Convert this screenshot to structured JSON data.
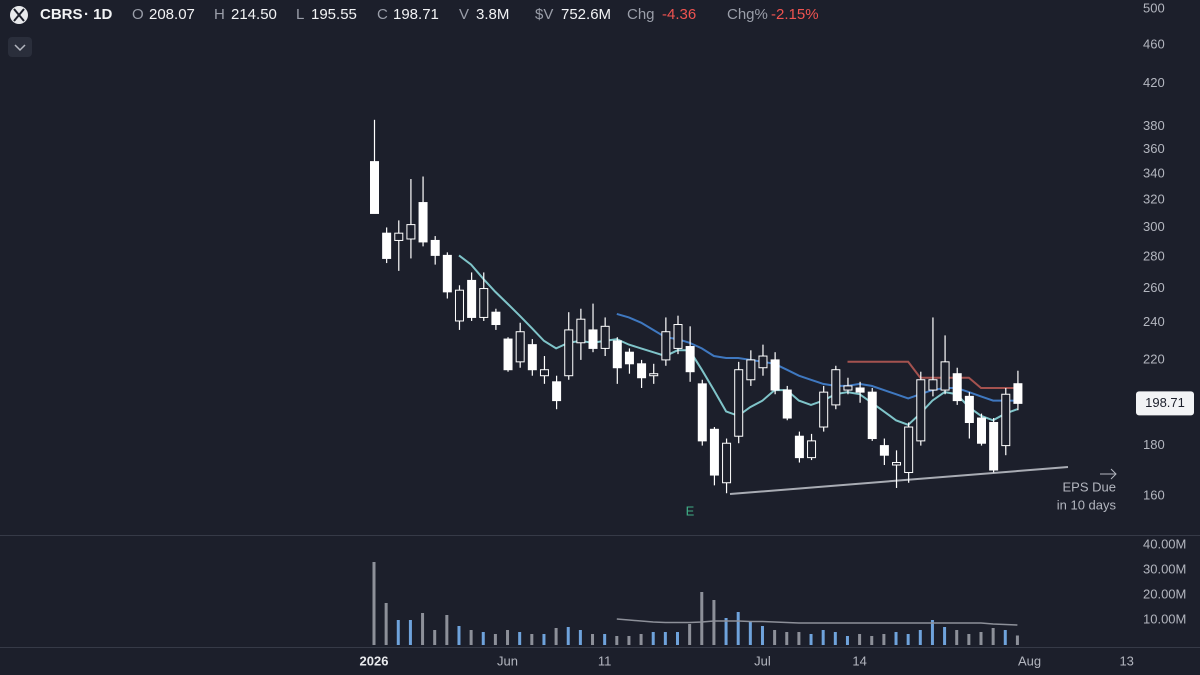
{
  "header": {
    "symbol": "CBRS",
    "interval": "· 1D",
    "o_label": "O",
    "o": "208.07",
    "h_label": "H",
    "h": "214.50",
    "l_label": "L",
    "l": "195.55",
    "c_label": "C",
    "c": "198.71",
    "v_label": "V",
    "v": "3.8M",
    "dv_label": "$V",
    "dv": "752.6M",
    "chg_label": "Chg",
    "chg": "-4.36",
    "chgp_label": "Chg%",
    "chgp": "-2.15%"
  },
  "annotations": {
    "earnings": "E",
    "eps_line1": "EPS Due",
    "eps_line2": "in 10 days"
  },
  "chart_data": {
    "type": "candlestick",
    "log_scale": true,
    "categories": [
      "2026",
      null,
      null,
      null,
      null,
      null,
      null,
      null,
      null,
      null,
      null,
      "Jun",
      null,
      null,
      null,
      null,
      null,
      null,
      null,
      "11",
      null,
      null,
      null,
      null,
      null,
      null,
      null,
      null,
      null,
      null,
      null,
      null,
      "Jul",
      null,
      null,
      null,
      null,
      null,
      null,
      null,
      "14",
      null,
      null,
      null,
      null,
      null,
      null,
      null,
      null,
      null,
      null,
      null,
      null,
      null,
      "Aug",
      null,
      null,
      null,
      null,
      null,
      null,
      null,
      "13"
    ],
    "open": [
      350,
      296,
      291,
      292,
      318,
      291,
      281,
      241,
      265,
      243,
      246,
      231,
      219,
      228,
      212,
      209,
      212,
      229,
      236,
      226,
      230,
      224,
      218,
      212,
      220,
      226,
      227,
      208,
      187,
      165,
      184,
      210,
      216,
      220,
      205,
      184,
      175,
      188,
      198,
      205,
      206,
      204,
      180,
      172,
      169,
      182,
      205,
      205,
      213,
      202,
      192,
      190,
      180,
      208.07,
      null,
      null,
      null,
      null,
      null,
      null,
      null,
      null,
      null
    ],
    "high": [
      386,
      300,
      305,
      336,
      338,
      294,
      283,
      262,
      270,
      270,
      248,
      232,
      240,
      231,
      222,
      212,
      246,
      248,
      251,
      243,
      232,
      226,
      220,
      218,
      243,
      244,
      238,
      210,
      188,
      183,
      219,
      225,
      228,
      224,
      207,
      186,
      185,
      207,
      217,
      211,
      209,
      206,
      183,
      178,
      190,
      214,
      243,
      233,
      216,
      204,
      194,
      192,
      206,
      214.5,
      null,
      null,
      null,
      null,
      null,
      null,
      null,
      null,
      null
    ],
    "low": [
      310,
      276,
      271,
      279,
      287,
      275,
      254,
      236,
      241,
      241,
      236,
      214,
      216,
      212,
      208,
      196,
      210,
      220,
      224,
      222,
      208,
      213,
      206,
      208,
      217,
      223,
      209,
      180,
      164,
      161,
      181,
      207,
      212,
      203,
      191,
      173,
      174,
      186,
      196,
      203,
      199,
      182,
      172,
      163,
      165,
      180,
      202,
      203,
      198,
      183,
      180,
      169,
      176,
      195.55,
      null,
      null,
      null,
      null,
      null,
      null,
      null,
      null,
      null
    ],
    "close": [
      310,
      279,
      296,
      302,
      290,
      281,
      258,
      259,
      243,
      260,
      239,
      215,
      235,
      215,
      215,
      200,
      236,
      242,
      226,
      238,
      216,
      218,
      211,
      213,
      235,
      239,
      214,
      182,
      168,
      181,
      215,
      220,
      222,
      205,
      192,
      175,
      182,
      204,
      215,
      207,
      204,
      183,
      176,
      173,
      188,
      210,
      210,
      219,
      200,
      190,
      181,
      170,
      203,
      198.71,
      null,
      null,
      null,
      null,
      null,
      null,
      null,
      null,
      null
    ],
    "volume": [
      33200000,
      16800000,
      10000000,
      10000000,
      12800000,
      6000000,
      12000000,
      7600000,
      6000000,
      5200000,
      4400000,
      6000000,
      5200000,
      4400000,
      4400000,
      6800000,
      7200000,
      6000000,
      4400000,
      4400000,
      3600000,
      3600000,
      4400000,
      5200000,
      5200000,
      5200000,
      8400000,
      21200000,
      18000000,
      10800000,
      13200000,
      9200000,
      7600000,
      6000000,
      5200000,
      5200000,
      4400000,
      6000000,
      5200000,
      3600000,
      4400000,
      3600000,
      4400000,
      5200000,
      4400000,
      6000000,
      10000000,
      7200000,
      6000000,
      4400000,
      5200000,
      6800000,
      6000000,
      3800000,
      null,
      null,
      null,
      null,
      null,
      null,
      null,
      null,
      null
    ],
    "up_color": "#6fa3dc",
    "down_color": "#8d9099",
    "candle_color": "#ffffff",
    "lines": [
      {
        "color": "#7fc4c9",
        "values": [
          null,
          null,
          null,
          null,
          null,
          null,
          null,
          281,
          275,
          266,
          258,
          251,
          244,
          237,
          230,
          226,
          229,
          230,
          229,
          230,
          231,
          228,
          226,
          224,
          222,
          225,
          225,
          215,
          205,
          195,
          193,
          197,
          200,
          205,
          205,
          200,
          198,
          200,
          203,
          204,
          203,
          199,
          195,
          191,
          189,
          194,
          200,
          204,
          203,
          197,
          193,
          191,
          194,
          196,
          null,
          null,
          null,
          null,
          null,
          null,
          null,
          null,
          null
        ]
      },
      {
        "color": "#3f78c0",
        "values": [
          null,
          null,
          null,
          null,
          null,
          null,
          null,
          null,
          null,
          null,
          null,
          null,
          null,
          null,
          null,
          null,
          null,
          null,
          null,
          null,
          245,
          243,
          240,
          236,
          232,
          231,
          229,
          226,
          222,
          221,
          221,
          220,
          219,
          218,
          215,
          212,
          210,
          208,
          207,
          207,
          208,
          207,
          205,
          203,
          201,
          203,
          205,
          206,
          206,
          204,
          202,
          200,
          200,
          200,
          null,
          null,
          null,
          null,
          null,
          null,
          null,
          null,
          null
        ]
      },
      {
        "color": "#a4524f",
        "values": [
          null,
          null,
          null,
          null,
          null,
          null,
          null,
          null,
          null,
          null,
          null,
          null,
          null,
          null,
          null,
          null,
          null,
          null,
          null,
          null,
          null,
          null,
          null,
          null,
          null,
          null,
          null,
          null,
          null,
          null,
          null,
          null,
          null,
          null,
          null,
          null,
          null,
          null,
          null,
          219,
          219,
          219,
          219,
          219,
          219,
          211,
          211,
          211,
          211,
          211,
          206,
          206,
          206,
          206,
          null,
          null,
          null,
          null,
          null,
          null,
          null,
          null,
          null
        ]
      }
    ],
    "volume_ma": {
      "color": "#8d9099",
      "values": [
        null,
        null,
        null,
        null,
        null,
        null,
        null,
        null,
        null,
        null,
        null,
        null,
        null,
        null,
        null,
        null,
        null,
        null,
        null,
        null,
        10400000,
        10000000,
        9600000,
        9200000,
        9000000,
        9000000,
        9000000,
        9200000,
        9600000,
        9600000,
        9600000,
        9400000,
        9400000,
        9200000,
        9000000,
        8800000,
        8800000,
        8800000,
        8800000,
        8800000,
        8800000,
        8800000,
        8800000,
        8800000,
        8800000,
        8800000,
        8800000,
        8800000,
        8800000,
        8800000,
        8800000,
        8400000,
        8200000,
        8000000,
        null,
        null,
        null,
        null,
        null,
        null,
        null,
        null,
        null
      ]
    },
    "ylim": [
      146,
      511
    ],
    "yticks": [
      160,
      180,
      220,
      240,
      260,
      280,
      300,
      320,
      340,
      360,
      380,
      420,
      460,
      500
    ],
    "volume_ylim": [
      0,
      43200000
    ],
    "volume_ticks": [
      {
        "value": 10000000,
        "label": "10.00M"
      },
      {
        "value": 20000000,
        "label": "20.00M"
      },
      {
        "value": 30000000,
        "label": "30.00M"
      },
      {
        "value": 40000000,
        "label": "40.00M"
      }
    ]
  }
}
